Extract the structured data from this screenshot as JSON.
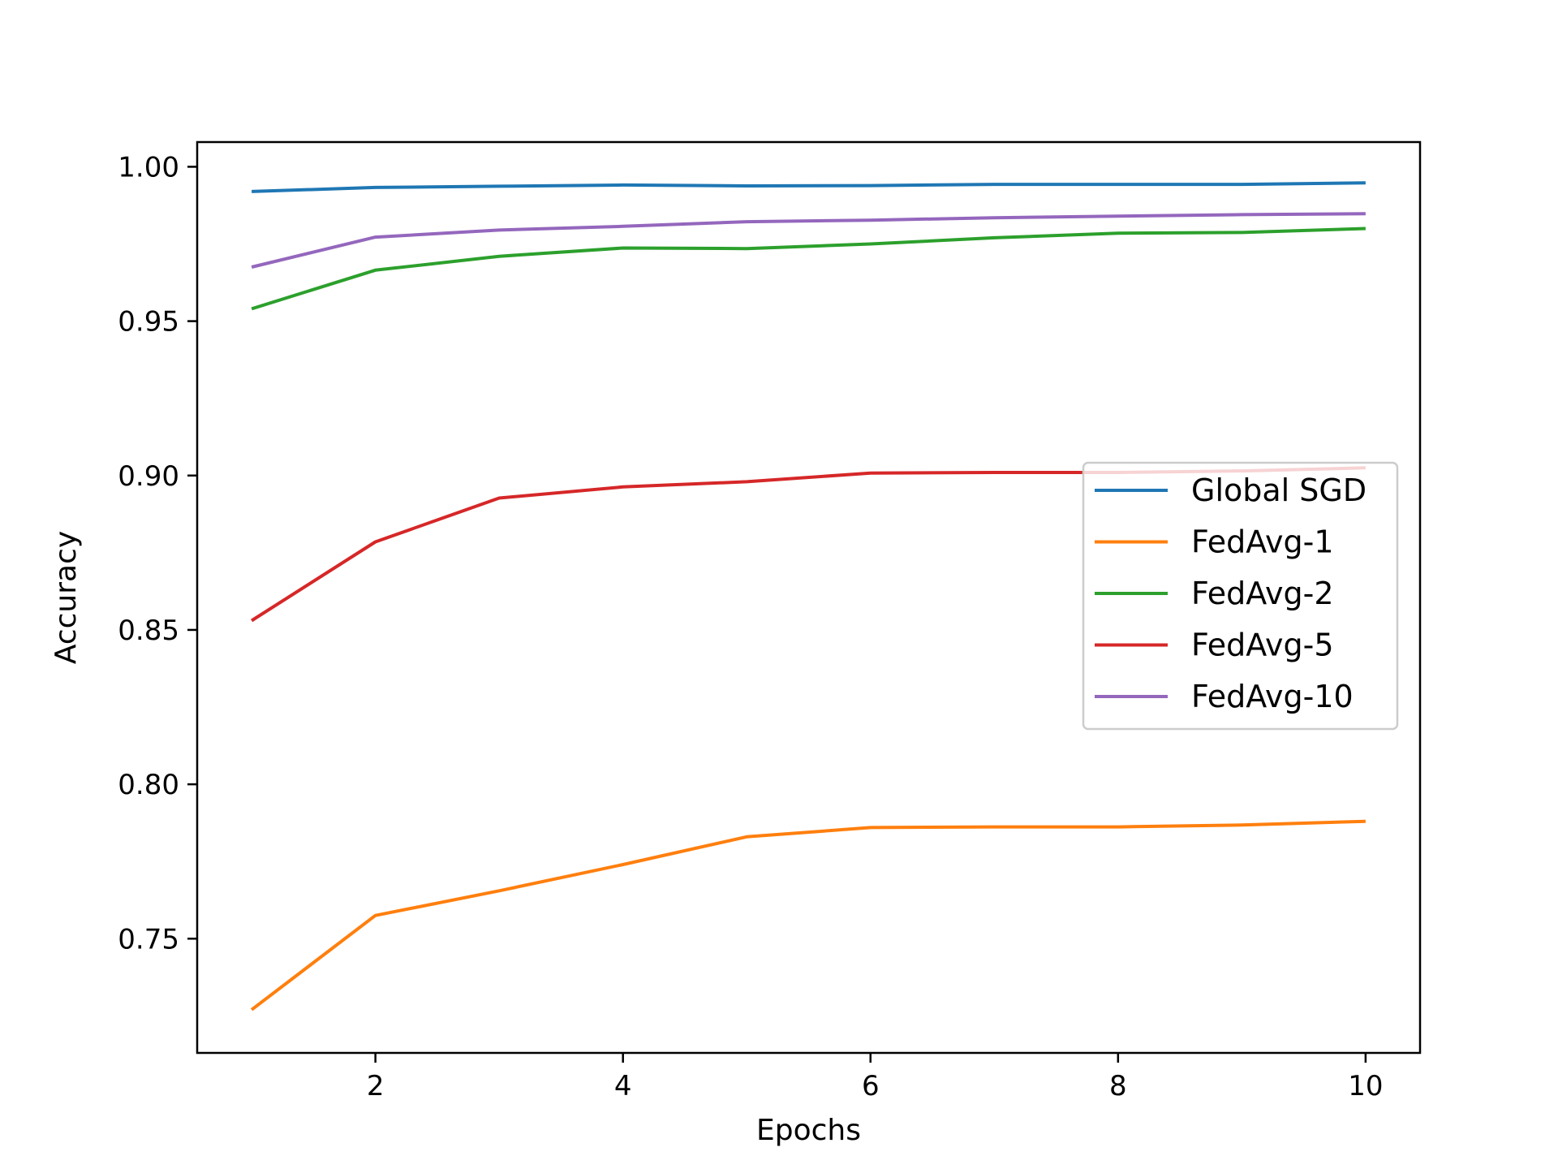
{
  "chart_data": {
    "type": "line",
    "title": "",
    "xlabel": "Epochs",
    "ylabel": "Accuracy",
    "xlim": [
      0.56,
      10.44
    ],
    "ylim": [
      0.713,
      1.008
    ],
    "xticks": [
      2,
      4,
      6,
      8,
      10
    ],
    "xtick_labels": [
      "2",
      "4",
      "6",
      "8",
      "10"
    ],
    "yticks": [
      0.75,
      0.8,
      0.85,
      0.9,
      0.95,
      1.0
    ],
    "ytick_labels": [
      "0.75",
      "0.80",
      "0.85",
      "0.90",
      "0.95",
      "1.00"
    ],
    "grid": false,
    "legend_position": "center-right",
    "x": [
      1,
      2,
      3,
      4,
      5,
      6,
      7,
      8,
      9,
      10
    ],
    "series": [
      {
        "name": "Global SGD",
        "color": "#1f77b4",
        "values": [
          0.992,
          0.9933,
          0.9937,
          0.9941,
          0.9938,
          0.9939,
          0.9943,
          0.9943,
          0.9943,
          0.9948
        ]
      },
      {
        "name": "FedAvg-1",
        "color": "#ff7f0e",
        "values": [
          0.727,
          0.7575,
          0.7655,
          0.774,
          0.783,
          0.786,
          0.7862,
          0.7862,
          0.7868,
          0.788
        ]
      },
      {
        "name": "FedAvg-2",
        "color": "#2ca02c",
        "values": [
          0.954,
          0.9665,
          0.971,
          0.9737,
          0.9735,
          0.975,
          0.977,
          0.9785,
          0.9787,
          0.98
        ]
      },
      {
        "name": "FedAvg-5",
        "color": "#d62728",
        "values": [
          0.853,
          0.8785,
          0.8927,
          0.8963,
          0.898,
          0.9008,
          0.901,
          0.901,
          0.9015,
          0.9025
        ]
      },
      {
        "name": "FedAvg-10",
        "color": "#9467bd",
        "values": [
          0.9675,
          0.9772,
          0.9795,
          0.9807,
          0.9822,
          0.9827,
          0.9835,
          0.984,
          0.9845,
          0.9848
        ]
      }
    ]
  }
}
